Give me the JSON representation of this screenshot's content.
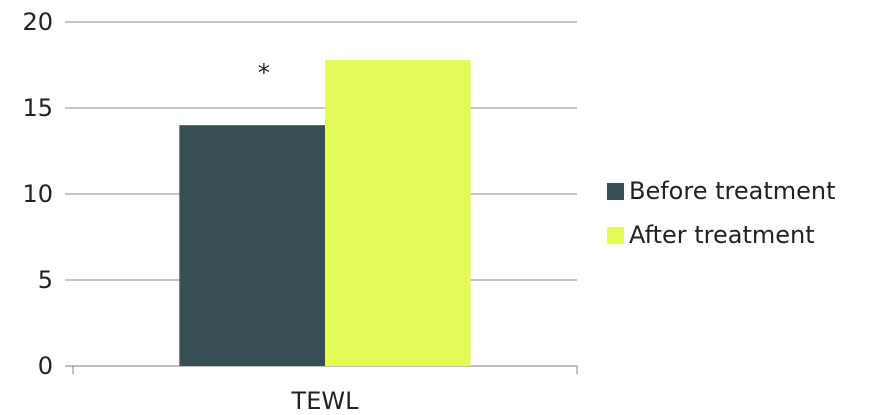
{
  "chart_data": {
    "type": "bar",
    "categories": [
      "TEWL"
    ],
    "series": [
      {
        "name": "Before treatment",
        "values": [
          14
        ],
        "color": "#374e55"
      },
      {
        "name": "After treatment",
        "values": [
          17.8
        ],
        "color": "#e4fa5b"
      }
    ],
    "ylim": [
      0,
      20
    ],
    "yticks": [
      "0",
      "5",
      "10",
      "15",
      "20"
    ],
    "annotation": "*",
    "grid": true,
    "legend": "right",
    "xlabel": "",
    "ylabel": ""
  }
}
